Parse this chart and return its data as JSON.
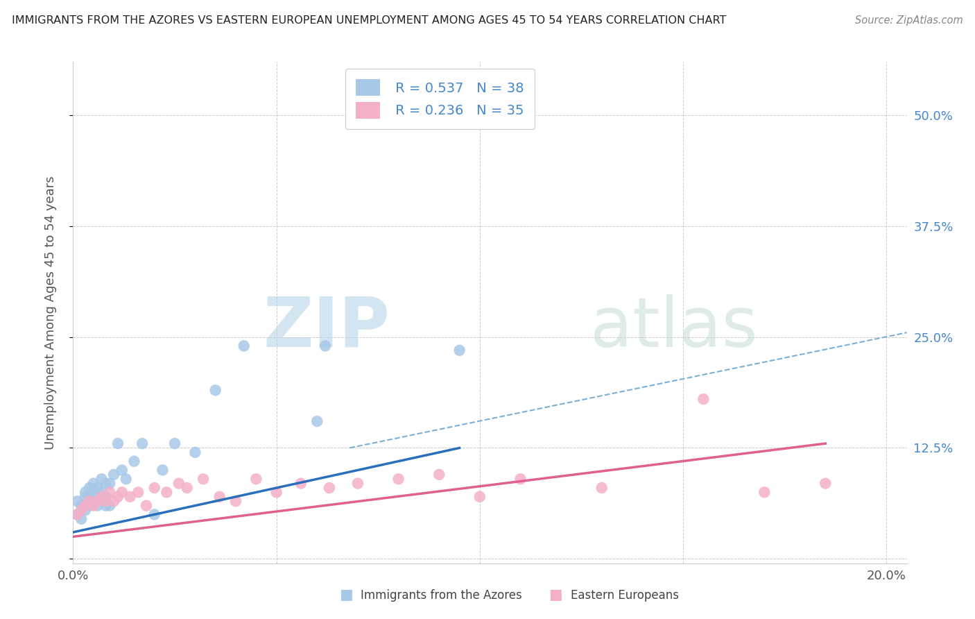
{
  "title": "IMMIGRANTS FROM THE AZORES VS EASTERN EUROPEAN UNEMPLOYMENT AMONG AGES 45 TO 54 YEARS CORRELATION CHART",
  "source": "Source: ZipAtlas.com",
  "ylabel": "Unemployment Among Ages 45 to 54 years",
  "xlabel_azores": "Immigrants from the Azores",
  "xlabel_eastern": "Eastern Europeans",
  "xlim": [
    0.0,
    0.205
  ],
  "ylim": [
    -0.005,
    0.56
  ],
  "azores_R": "0.537",
  "azores_N": "38",
  "eastern_R": "0.236",
  "eastern_N": "35",
  "azores_color": "#a8c8e8",
  "eastern_color": "#f4b0c8",
  "azores_line_color": "#2a6fbb",
  "eastern_line_color": "#e06090",
  "blue_dash_color": "#7ab0d8",
  "background_color": "#ffffff",
  "grid_color": "#cccccc",
  "watermark_zip": "ZIP",
  "watermark_atlas": "atlas",
  "right_tick_color": "#4488cc",
  "azores_x": [
    0.001,
    0.001,
    0.002,
    0.002,
    0.003,
    0.003,
    0.003,
    0.004,
    0.004,
    0.004,
    0.005,
    0.005,
    0.005,
    0.006,
    0.006,
    0.006,
    0.007,
    0.007,
    0.008,
    0.008,
    0.008,
    0.009,
    0.009,
    0.01,
    0.011,
    0.012,
    0.013,
    0.015,
    0.017,
    0.02,
    0.022,
    0.025,
    0.03,
    0.035,
    0.042,
    0.06,
    0.062,
    0.095
  ],
  "azores_y": [
    0.05,
    0.065,
    0.045,
    0.06,
    0.055,
    0.07,
    0.075,
    0.06,
    0.08,
    0.07,
    0.065,
    0.075,
    0.085,
    0.07,
    0.08,
    0.06,
    0.075,
    0.09,
    0.07,
    0.085,
    0.06,
    0.085,
    0.06,
    0.095,
    0.13,
    0.1,
    0.09,
    0.11,
    0.13,
    0.05,
    0.1,
    0.13,
    0.12,
    0.19,
    0.24,
    0.155,
    0.24,
    0.235
  ],
  "eastern_x": [
    0.001,
    0.002,
    0.003,
    0.004,
    0.005,
    0.006,
    0.007,
    0.008,
    0.009,
    0.01,
    0.011,
    0.012,
    0.014,
    0.016,
    0.018,
    0.02,
    0.023,
    0.026,
    0.028,
    0.032,
    0.036,
    0.04,
    0.045,
    0.05,
    0.056,
    0.063,
    0.07,
    0.08,
    0.09,
    0.1,
    0.11,
    0.13,
    0.155,
    0.17,
    0.185
  ],
  "eastern_y": [
    0.05,
    0.055,
    0.06,
    0.065,
    0.06,
    0.065,
    0.07,
    0.065,
    0.075,
    0.065,
    0.07,
    0.075,
    0.07,
    0.075,
    0.06,
    0.08,
    0.075,
    0.085,
    0.08,
    0.09,
    0.07,
    0.065,
    0.09,
    0.075,
    0.085,
    0.08,
    0.085,
    0.09,
    0.095,
    0.07,
    0.09,
    0.08,
    0.18,
    0.075,
    0.085
  ],
  "azores_line_x0": 0.0,
  "azores_line_y0": 0.03,
  "azores_line_x1": 0.095,
  "azores_line_y1": 0.125,
  "eastern_line_x0": 0.0,
  "eastern_line_y0": 0.025,
  "eastern_line_x1": 0.185,
  "eastern_line_y1": 0.13,
  "dash_line_x0": 0.068,
  "dash_line_y0": 0.125,
  "dash_line_x1": 0.205,
  "dash_line_y1": 0.255
}
